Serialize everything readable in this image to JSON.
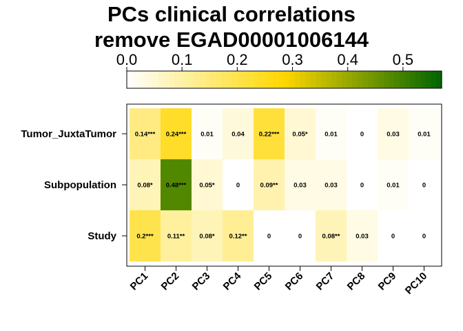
{
  "chart_data": {
    "type": "heatmap",
    "title_lines": [
      "PCs clinical correlations",
      "remove EGAD00001006144"
    ],
    "columns": [
      "PC1",
      "PC2",
      "PC3",
      "PC4",
      "PC5",
      "PC6",
      "PC7",
      "PC8",
      "PC9",
      "PC10"
    ],
    "rows": [
      "Tumor_JuxtaTumor",
      "Subpopulation",
      "Study"
    ],
    "values": [
      [
        0.14,
        0.24,
        0.01,
        0.04,
        0.22,
        0.05,
        0.01,
        0.0,
        0.03,
        0.01
      ],
      [
        0.08,
        0.48,
        0.05,
        0.0,
        0.09,
        0.03,
        0.03,
        0.0,
        0.01,
        0.0
      ],
      [
        0.2,
        0.11,
        0.08,
        0.12,
        0.0,
        0.0,
        0.08,
        0.03,
        0.0,
        0.0
      ]
    ],
    "labels": [
      [
        "0.14***",
        "0.24***",
        "0.01",
        "0.04",
        "0.22***",
        "0.05*",
        "0.01",
        "0",
        "0.03",
        "0.01"
      ],
      [
        "0.08*",
        "0.48***",
        "0.05*",
        "0",
        "0.09**",
        "0.03",
        "0.03",
        "0",
        "0.01",
        "0"
      ],
      [
        "0.2***",
        "0.11**",
        "0.08*",
        "0.12**",
        "0",
        "0",
        "0.08**",
        "0.03",
        "0",
        "0"
      ]
    ],
    "colorbar": {
      "range": [
        0,
        0.57
      ],
      "ticks": [
        0.0,
        0.1,
        0.2,
        0.3,
        0.4,
        0.5
      ],
      "tick_labels": [
        "0.0",
        "0.1",
        "0.2",
        "0.3",
        "0.4",
        "0.5"
      ],
      "colors": [
        "#ffffff",
        "#ffd700",
        "#006400"
      ]
    }
  }
}
